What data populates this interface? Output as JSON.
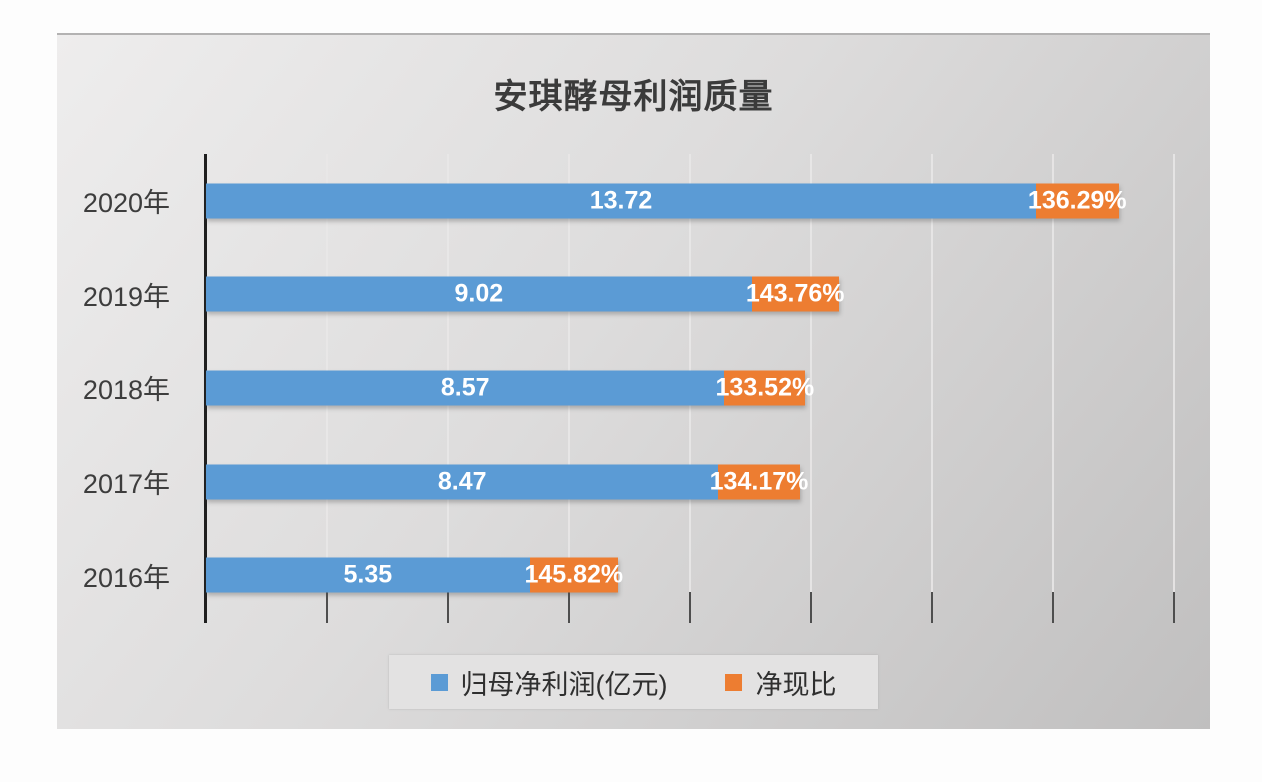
{
  "chart_data": {
    "type": "bar",
    "orientation": "horizontal",
    "stacked": true,
    "title": "安琪酵母利润质量",
    "categories": [
      "2020年",
      "2019年",
      "2018年",
      "2017年",
      "2016年"
    ],
    "series": [
      {
        "name": "归母净利润(亿元)",
        "color": "#5B9BD5",
        "values": [
          13.72,
          9.02,
          8.57,
          8.47,
          5.35
        ],
        "labels": [
          "13.72",
          "9.02",
          "8.57",
          "8.47",
          "5.35"
        ]
      },
      {
        "name": "净现比",
        "color": "#ED7D31",
        "values_percent": [
          136.29,
          143.76,
          133.52,
          134.17,
          145.82
        ],
        "plotted_values": [
          1.3629,
          1.4376,
          1.3352,
          1.3417,
          1.4582
        ],
        "labels": [
          "136.29%",
          "143.76%",
          "133.52%",
          "134.17%",
          "145.82%"
        ]
      }
    ],
    "xlim": [
      0,
      16
    ],
    "x_gridline_interval": 2,
    "grid": true,
    "x_tick_labels_visible": false,
    "legend_position": "bottom",
    "bar_label_color": "#ffffff",
    "axis_color": "#1f1f1f",
    "text_color": "#3d3d3d"
  },
  "legend": {
    "items": [
      {
        "label": "归母净利润(亿元)",
        "color": "#5B9BD5"
      },
      {
        "label": "净现比",
        "color": "#ED7D31"
      }
    ]
  }
}
